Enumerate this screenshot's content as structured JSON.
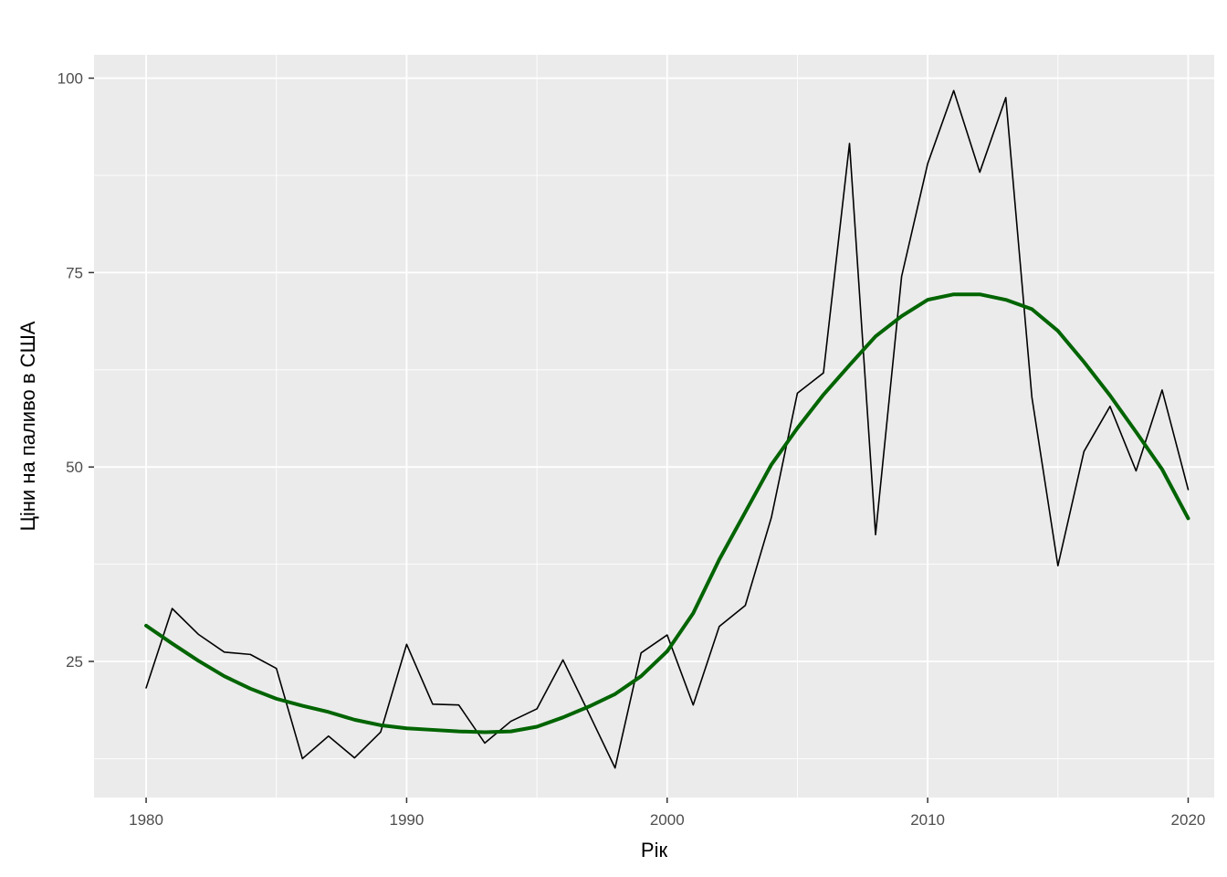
{
  "chart_data": {
    "type": "line",
    "title": "",
    "xlabel": "Рік",
    "ylabel": "Ціни на паливо в США",
    "xlim": [
      1978,
      2021
    ],
    "ylim": [
      7.5,
      103
    ],
    "x_ticks": [
      1980,
      1990,
      2000,
      2010,
      2020
    ],
    "y_ticks": [
      25,
      50,
      75,
      100
    ],
    "grid": true,
    "legend": "none",
    "colors": {
      "panel_background": "#EBEBEB",
      "grid": "#FFFFFF",
      "observed": "#000000",
      "smooth": "#006400"
    },
    "series": [
      {
        "style": "thin-black",
        "x": [
          1980,
          1981,
          1982,
          1983,
          1984,
          1985,
          1986,
          1987,
          1988,
          1989,
          1990,
          1991,
          1992,
          1993,
          1994,
          1995,
          1996,
          1997,
          1998,
          1999,
          2000,
          2001,
          2002,
          2003,
          2004,
          2005,
          2006,
          2007,
          2008,
          2009,
          2010,
          2011,
          2012,
          2013,
          2014,
          2015,
          2016,
          2017,
          2018,
          2019,
          2020
        ],
        "values": [
          21.6,
          31.8,
          28.5,
          26.2,
          25.9,
          24.1,
          12.5,
          15.4,
          12.6,
          15.9,
          27.2,
          19.5,
          19.4,
          14.5,
          17.3,
          18.9,
          25.2,
          18.3,
          11.3,
          26.1,
          28.4,
          19.4,
          29.5,
          32.2,
          43.5,
          59.5,
          62.1,
          91.6,
          41.3,
          74.5,
          89.0,
          98.4,
          87.9,
          97.5,
          59.0,
          37.3,
          52.0,
          57.8,
          49.5,
          59.9,
          47.1
        ]
      },
      {
        "style": "thick-green-smooth",
        "x": [
          1980,
          1981,
          1982,
          1983,
          1984,
          1985,
          1986,
          1987,
          1988,
          1989,
          1990,
          1991,
          1992,
          1993,
          1994,
          1995,
          1996,
          1997,
          1998,
          1999,
          2000,
          2001,
          2002,
          2003,
          2004,
          2005,
          2006,
          2007,
          2008,
          2009,
          2010,
          2011,
          2012,
          2013,
          2014,
          2015,
          2016,
          2017,
          2018,
          2019,
          2020
        ],
        "values": [
          29.6,
          27.3,
          25.1,
          23.1,
          21.5,
          20.2,
          19.3,
          18.5,
          17.5,
          16.8,
          16.4,
          16.2,
          16.0,
          15.9,
          16.0,
          16.6,
          17.8,
          19.2,
          20.8,
          23.1,
          26.3,
          31.2,
          38.1,
          44.2,
          50.3,
          55.0,
          59.3,
          63.1,
          66.8,
          69.4,
          71.5,
          72.2,
          72.2,
          71.5,
          70.3,
          67.5,
          63.5,
          59.2,
          54.5,
          49.7,
          43.4
        ]
      }
    ]
  }
}
